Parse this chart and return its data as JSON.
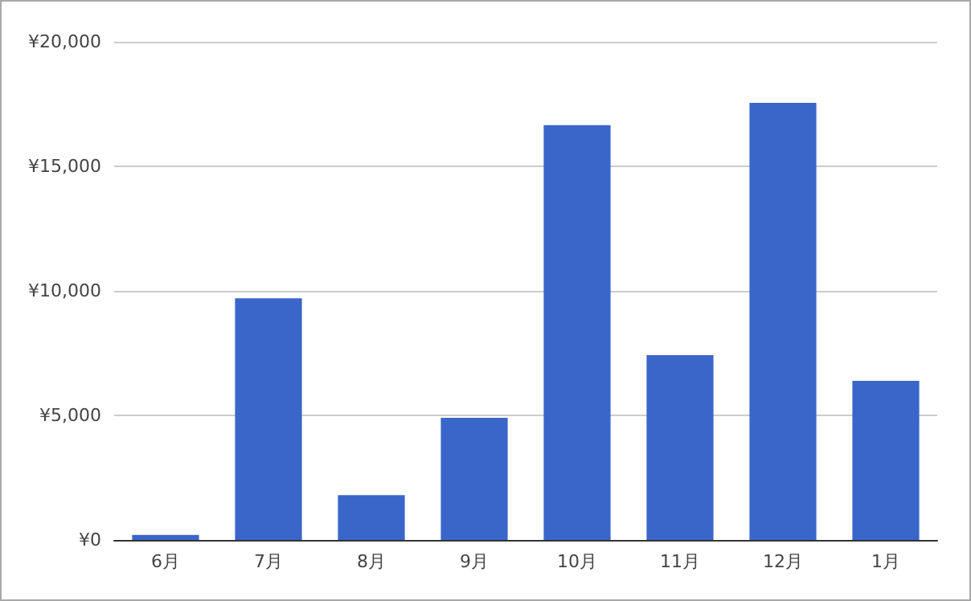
{
  "chart_data": {
    "type": "bar",
    "categories": [
      "6月",
      "7月",
      "8月",
      "9月",
      "10月",
      "11月",
      "12月",
      "1月"
    ],
    "values": [
      200,
      9700,
      1800,
      4900,
      16650,
      7420,
      17550,
      6390
    ],
    "color": "#3a66c9",
    "ylim": [
      0,
      20000
    ],
    "yticks": [
      {
        "value": 0,
        "label": "¥0"
      },
      {
        "value": 5000,
        "label": "¥5,000"
      },
      {
        "value": 10000,
        "label": "¥10,000"
      },
      {
        "value": 15000,
        "label": "¥15,000"
      },
      {
        "value": 20000,
        "label": "¥20,000"
      }
    ],
    "grid": "y"
  }
}
